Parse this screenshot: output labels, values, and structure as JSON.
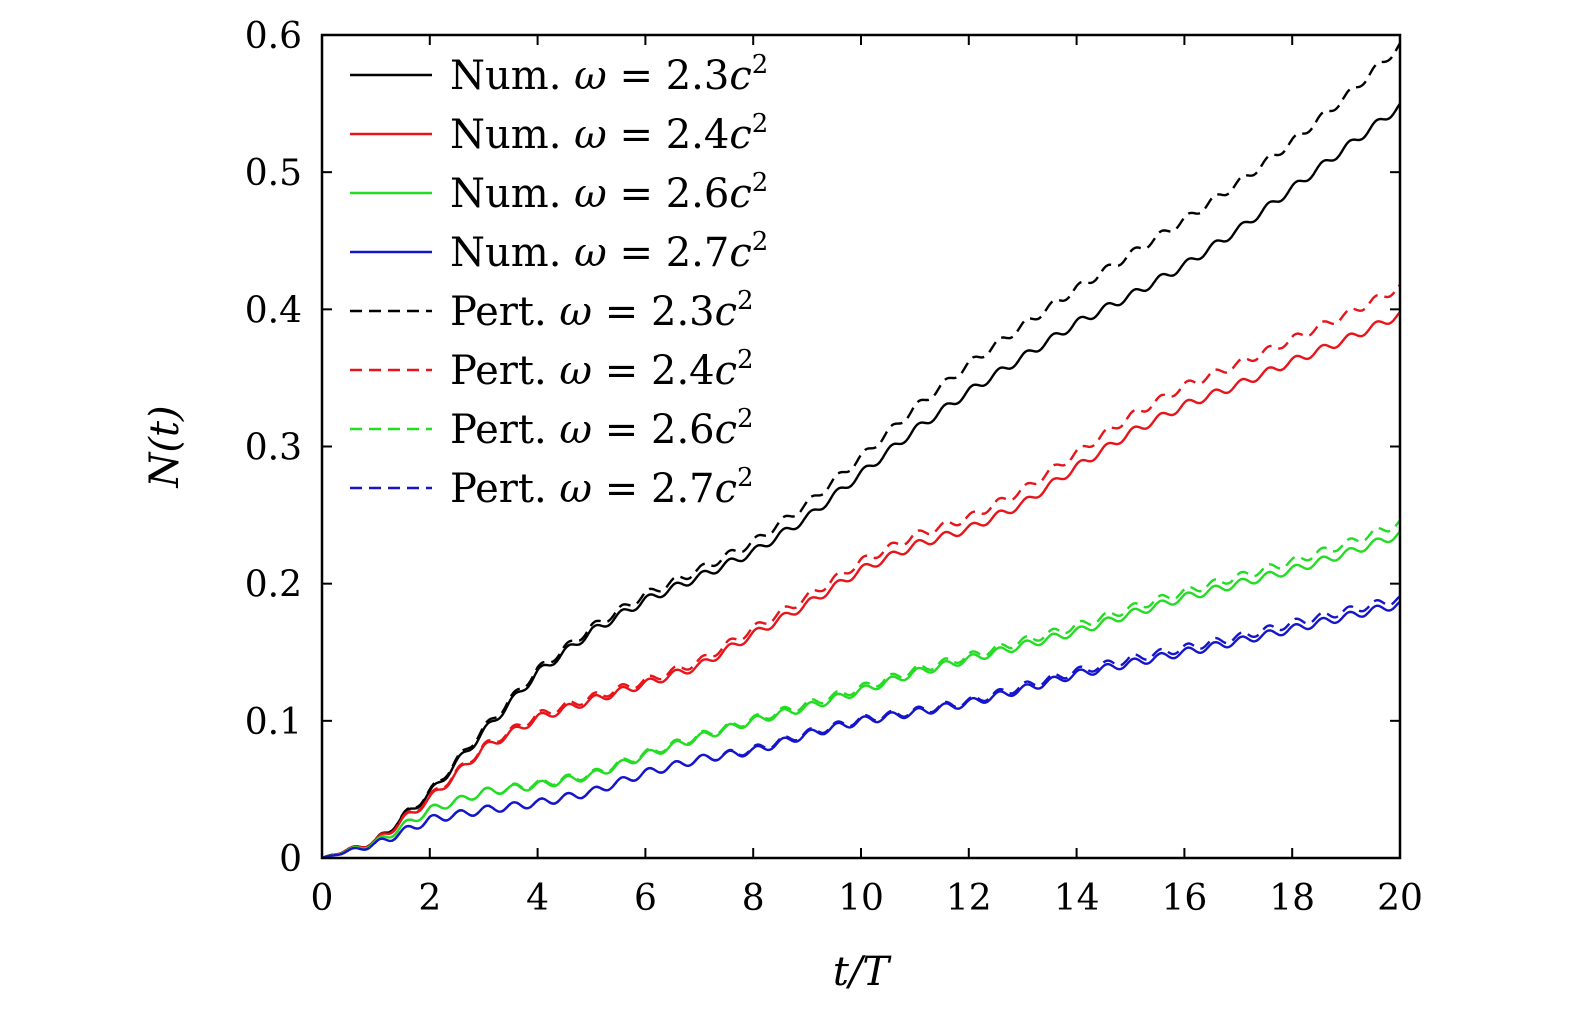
{
  "chart_data": {
    "type": "line",
    "title": "",
    "xlabel": "t/T",
    "ylabel": "N(t)",
    "xlim": [
      0,
      20
    ],
    "ylim": [
      0,
      0.6
    ],
    "xticks": [
      "0",
      "2",
      "4",
      "6",
      "8",
      "10",
      "12",
      "14",
      "16",
      "18",
      "20"
    ],
    "yticks": [
      "0",
      "0.1",
      "0.2",
      "0.3",
      "0.4",
      "0.5",
      "0.6"
    ],
    "grid": false,
    "legend_position": "top-left",
    "x": [
      0,
      1,
      2,
      3,
      4,
      5,
      6,
      7,
      8,
      9,
      10,
      11,
      12,
      13,
      14,
      15,
      16,
      17,
      18,
      19,
      20
    ],
    "series": [
      {
        "name": "Num. ω = 2.3c²",
        "color": "#000000",
        "dash": "solid",
        "legend_parts": [
          "Num. ",
          "ω",
          " = 2.3",
          "c",
          "2"
        ],
        "values": [
          0,
          0.012,
          0.047,
          0.092,
          0.135,
          0.165,
          0.188,
          0.205,
          0.223,
          0.248,
          0.28,
          0.312,
          0.34,
          0.365,
          0.39,
          0.41,
          0.432,
          0.458,
          0.488,
          0.518,
          0.548
        ]
      },
      {
        "name": "Num. ω = 2.4c²",
        "color": "#e8141a",
        "dash": "solid",
        "legend_parts": [
          "Num. ",
          "ω",
          " = 2.4",
          "c",
          "2"
        ],
        "values": [
          0,
          0.012,
          0.043,
          0.08,
          0.102,
          0.115,
          0.127,
          0.14,
          0.163,
          0.185,
          0.21,
          0.228,
          0.24,
          0.258,
          0.285,
          0.31,
          0.33,
          0.345,
          0.362,
          0.378,
          0.396
        ]
      },
      {
        "name": "Num. ω = 2.6c²",
        "color": "#22dd22",
        "dash": "solid",
        "legend_parts": [
          "Num. ",
          "ω",
          " = 2.6",
          "c",
          "2"
        ],
        "values": [
          0,
          0.011,
          0.035,
          0.048,
          0.053,
          0.06,
          0.075,
          0.088,
          0.1,
          0.11,
          0.122,
          0.135,
          0.145,
          0.155,
          0.165,
          0.178,
          0.19,
          0.2,
          0.21,
          0.222,
          0.236
        ]
      },
      {
        "name": "Num. ω = 2.7c²",
        "color": "#1515cc",
        "dash": "solid",
        "legend_parts": [
          "Num. ",
          "ω",
          " = 2.7",
          "c",
          "2"
        ],
        "values": [
          0,
          0.01,
          0.028,
          0.035,
          0.04,
          0.048,
          0.062,
          0.072,
          0.078,
          0.09,
          0.1,
          0.106,
          0.113,
          0.123,
          0.134,
          0.142,
          0.15,
          0.158,
          0.167,
          0.176,
          0.185
        ]
      },
      {
        "name": "Pert. ω = 2.3c²",
        "color": "#000000",
        "dash": "dashed",
        "legend_parts": [
          "Pert. ",
          "ω",
          " = 2.3",
          "c",
          "2"
        ],
        "values": [
          0,
          0.012,
          0.048,
          0.094,
          0.137,
          0.168,
          0.192,
          0.21,
          0.23,
          0.258,
          0.292,
          0.328,
          0.36,
          0.388,
          0.415,
          0.44,
          0.465,
          0.492,
          0.522,
          0.555,
          0.592
        ]
      },
      {
        "name": "Pert. ω = 2.4c²",
        "color": "#e8141a",
        "dash": "dashed",
        "legend_parts": [
          "Pert. ",
          "ω",
          " = 2.4",
          "c",
          "2"
        ],
        "values": [
          0,
          0.012,
          0.044,
          0.081,
          0.104,
          0.117,
          0.129,
          0.143,
          0.167,
          0.19,
          0.216,
          0.235,
          0.248,
          0.268,
          0.295,
          0.322,
          0.344,
          0.36,
          0.378,
          0.396,
          0.416
        ]
      },
      {
        "name": "Pert. ω = 2.6c²",
        "color": "#22dd22",
        "dash": "dashed",
        "legend_parts": [
          "Pert. ",
          "ω",
          " = 2.6",
          "c",
          "2"
        ],
        "values": [
          0,
          0.011,
          0.035,
          0.048,
          0.054,
          0.061,
          0.076,
          0.089,
          0.101,
          0.112,
          0.124,
          0.137,
          0.147,
          0.158,
          0.169,
          0.182,
          0.194,
          0.205,
          0.216,
          0.229,
          0.244
        ]
      },
      {
        "name": "Pert. ω = 2.7c²",
        "color": "#1515cc",
        "dash": "dashed",
        "legend_parts": [
          "Pert. ",
          "ω",
          " = 2.7",
          "c",
          "2"
        ],
        "values": [
          0,
          0.01,
          0.028,
          0.035,
          0.04,
          0.048,
          0.062,
          0.072,
          0.079,
          0.091,
          0.101,
          0.107,
          0.114,
          0.125,
          0.136,
          0.145,
          0.153,
          0.161,
          0.171,
          0.18,
          0.189
        ]
      }
    ]
  }
}
